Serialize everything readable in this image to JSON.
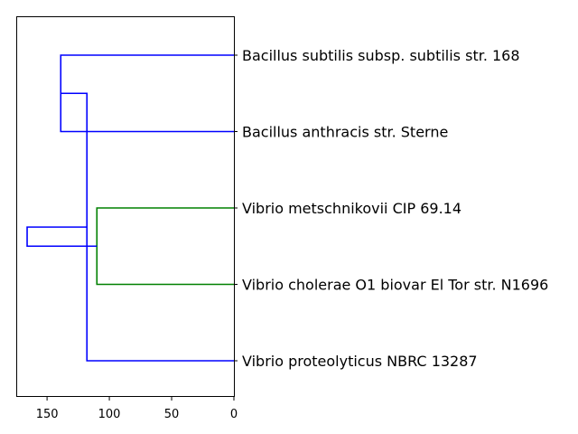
{
  "chart_data": {
    "type": "dendrogram",
    "orientation": "left",
    "leaves": [
      "Bacillus subtilis subsp. subtilis str. 168",
      "Bacillus anthracis str. Sterne",
      "Vibrio metschnikovii CIP 69.14",
      "Vibrio cholerae O1 biovar El Tor str. N1696",
      "Vibrio proteolyticus NBRC 13287"
    ],
    "merges": [
      {
        "left": 0,
        "right": 1,
        "height": 139,
        "color": "#0000ff"
      },
      {
        "left": 2,
        "right": 3,
        "height": 110,
        "color": "#008000"
      },
      {
        "left": 5,
        "right": 4,
        "height": 118,
        "color": "#0000ff"
      },
      {
        "left": 6,
        "right": 7,
        "height": 166,
        "color": "#0000ff"
      }
    ],
    "x_ticks": [
      150,
      100,
      50,
      0
    ],
    "x_tick_labels": [
      "150",
      "100",
      "50",
      "0"
    ],
    "xlim": [
      174,
      0
    ],
    "title": "",
    "xlabel": "",
    "ylabel": "",
    "grid": false
  }
}
